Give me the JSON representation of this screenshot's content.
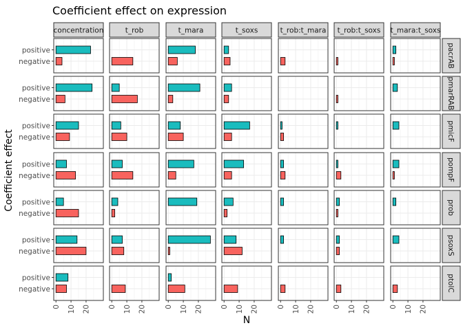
{
  "chart_data": {
    "type": "bar",
    "orientation": "horizontal",
    "title": "Coefficient effect on expression",
    "xlabel": "N",
    "ylabel": "Coefficient effect",
    "xlim": [
      0,
      30
    ],
    "xticks": [
      0,
      10,
      20
    ],
    "facet_columns": [
      "concentration",
      "t_rob",
      "t_mara",
      "t_soxs",
      "t_rob:t_mara",
      "t_rob:t_soxs",
      "t_mara:t_soxs"
    ],
    "facet_rows": [
      "pacrAB",
      "pmarRAB",
      "pmicF",
      "pompF",
      "prob",
      "psoxS",
      "ptolC"
    ],
    "categories": [
      "positive",
      "negative"
    ],
    "colors": {
      "positive": "#1ABCBE",
      "negative": "#F8635E"
    },
    "grid": true,
    "values": {
      "pacrAB": {
        "concentration": [
          23,
          4
        ],
        "t_rob": [
          0,
          14
        ],
        "t_mara": [
          18,
          6
        ],
        "t_soxs": [
          3,
          4
        ],
        "t_rob:t_mara": [
          0,
          3
        ],
        "t_rob:t_soxs": [
          0,
          1
        ],
        "t_mara:t_soxs": [
          2,
          1
        ]
      },
      "pmarRAB": {
        "concentration": [
          24,
          6
        ],
        "t_rob": [
          5,
          17
        ],
        "t_mara": [
          21,
          3
        ],
        "t_soxs": [
          5,
          3
        ],
        "t_rob:t_mara": [
          0,
          0
        ],
        "t_rob:t_soxs": [
          0,
          1
        ],
        "t_mara:t_soxs": [
          3,
          0
        ]
      },
      "pmicF": {
        "concentration": [
          15,
          9
        ],
        "t_rob": [
          6,
          10
        ],
        "t_mara": [
          8,
          10
        ],
        "t_soxs": [
          17,
          5
        ],
        "t_rob:t_mara": [
          1,
          2
        ],
        "t_rob:t_soxs": [
          1,
          0
        ],
        "t_mara:t_soxs": [
          4,
          0
        ]
      },
      "pompF": {
        "concentration": [
          7,
          13
        ],
        "t_rob": [
          7,
          14
        ],
        "t_mara": [
          17,
          5
        ],
        "t_soxs": [
          13,
          5
        ],
        "t_rob:t_mara": [
          2,
          3
        ],
        "t_rob:t_soxs": [
          1,
          3
        ],
        "t_mara:t_soxs": [
          4,
          1
        ]
      },
      "prob": {
        "concentration": [
          5,
          15
        ],
        "t_rob": [
          4,
          2
        ],
        "t_mara": [
          19,
          0
        ],
        "t_soxs": [
          6,
          2
        ],
        "t_rob:t_mara": [
          2,
          0
        ],
        "t_rob:t_soxs": [
          2,
          1
        ],
        "t_mara:t_soxs": [
          2,
          0
        ]
      },
      "psoxS": {
        "concentration": [
          14,
          20
        ],
        "t_rob": [
          7,
          8
        ],
        "t_mara": [
          28,
          1
        ],
        "t_soxs": [
          8,
          12
        ],
        "t_rob:t_mara": [
          2,
          0
        ],
        "t_rob:t_soxs": [
          2,
          2
        ],
        "t_mara:t_soxs": [
          4,
          0
        ]
      },
      "ptolC": {
        "concentration": [
          8,
          7
        ],
        "t_rob": [
          0,
          9
        ],
        "t_mara": [
          2,
          11
        ],
        "t_soxs": [
          0,
          9
        ],
        "t_rob:t_mara": [
          0,
          3
        ],
        "t_rob:t_soxs": [
          0,
          3
        ],
        "t_mara:t_soxs": [
          0,
          3
        ]
      }
    }
  }
}
